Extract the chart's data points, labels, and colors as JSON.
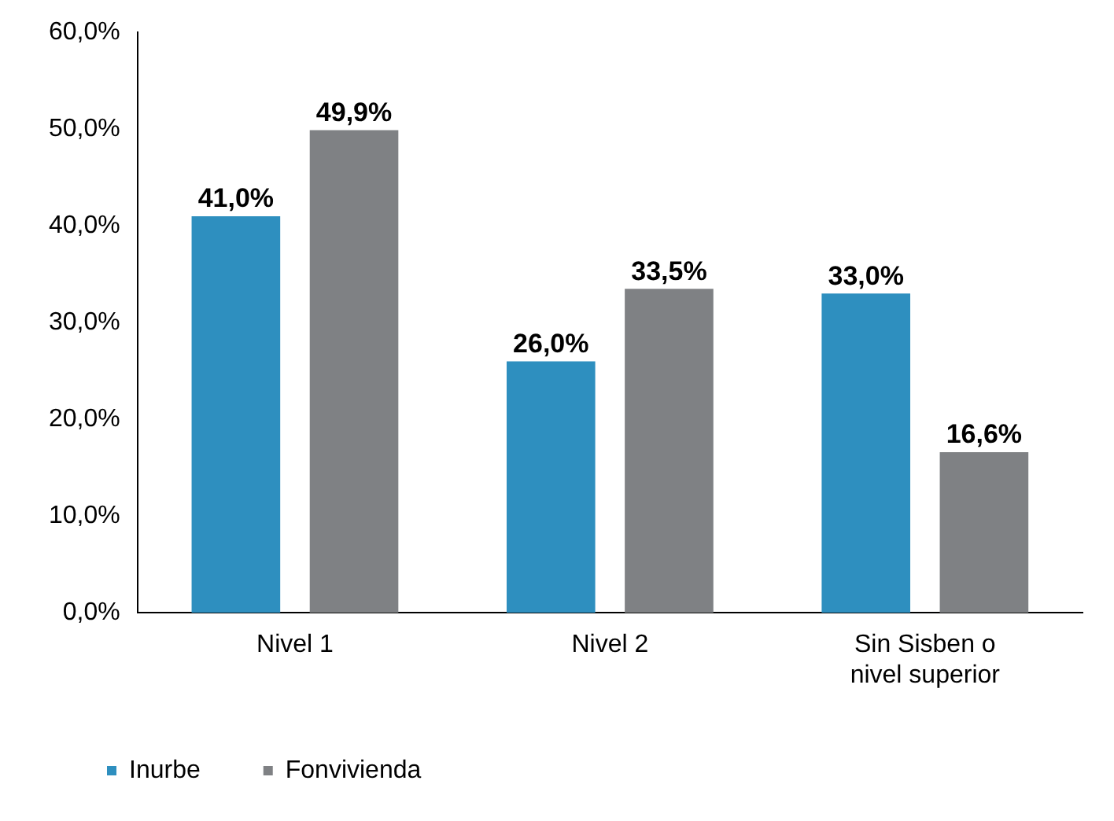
{
  "chart_data": {
    "type": "bar",
    "categories": [
      "Nivel 1",
      "Nivel 2",
      "Sin Sisben o nivel superior"
    ],
    "series": [
      {
        "name": "Inurbe",
        "color": "#2e8fbf",
        "values": [
          41.0,
          26.0,
          33.0
        ],
        "value_labels": [
          "41,0%",
          "26,0%",
          "33,0%"
        ]
      },
      {
        "name": "Fonvivienda",
        "color": "#7f8184",
        "values": [
          49.9,
          33.5,
          16.6
        ],
        "value_labels": [
          "49,9%",
          "33,5%",
          "16,6%"
        ]
      }
    ],
    "ylim": [
      0,
      60
    ],
    "yticks": [
      {
        "value": 0,
        "label": "0,0%"
      },
      {
        "value": 10,
        "label": "10,0%"
      },
      {
        "value": 20,
        "label": "20,0%"
      },
      {
        "value": 30,
        "label": "30,0%"
      },
      {
        "value": 40,
        "label": "40,0%"
      },
      {
        "value": 50,
        "label": "50,0%"
      },
      {
        "value": 60,
        "label": "60,0%"
      }
    ],
    "grid": false,
    "legend": "bottom left"
  }
}
